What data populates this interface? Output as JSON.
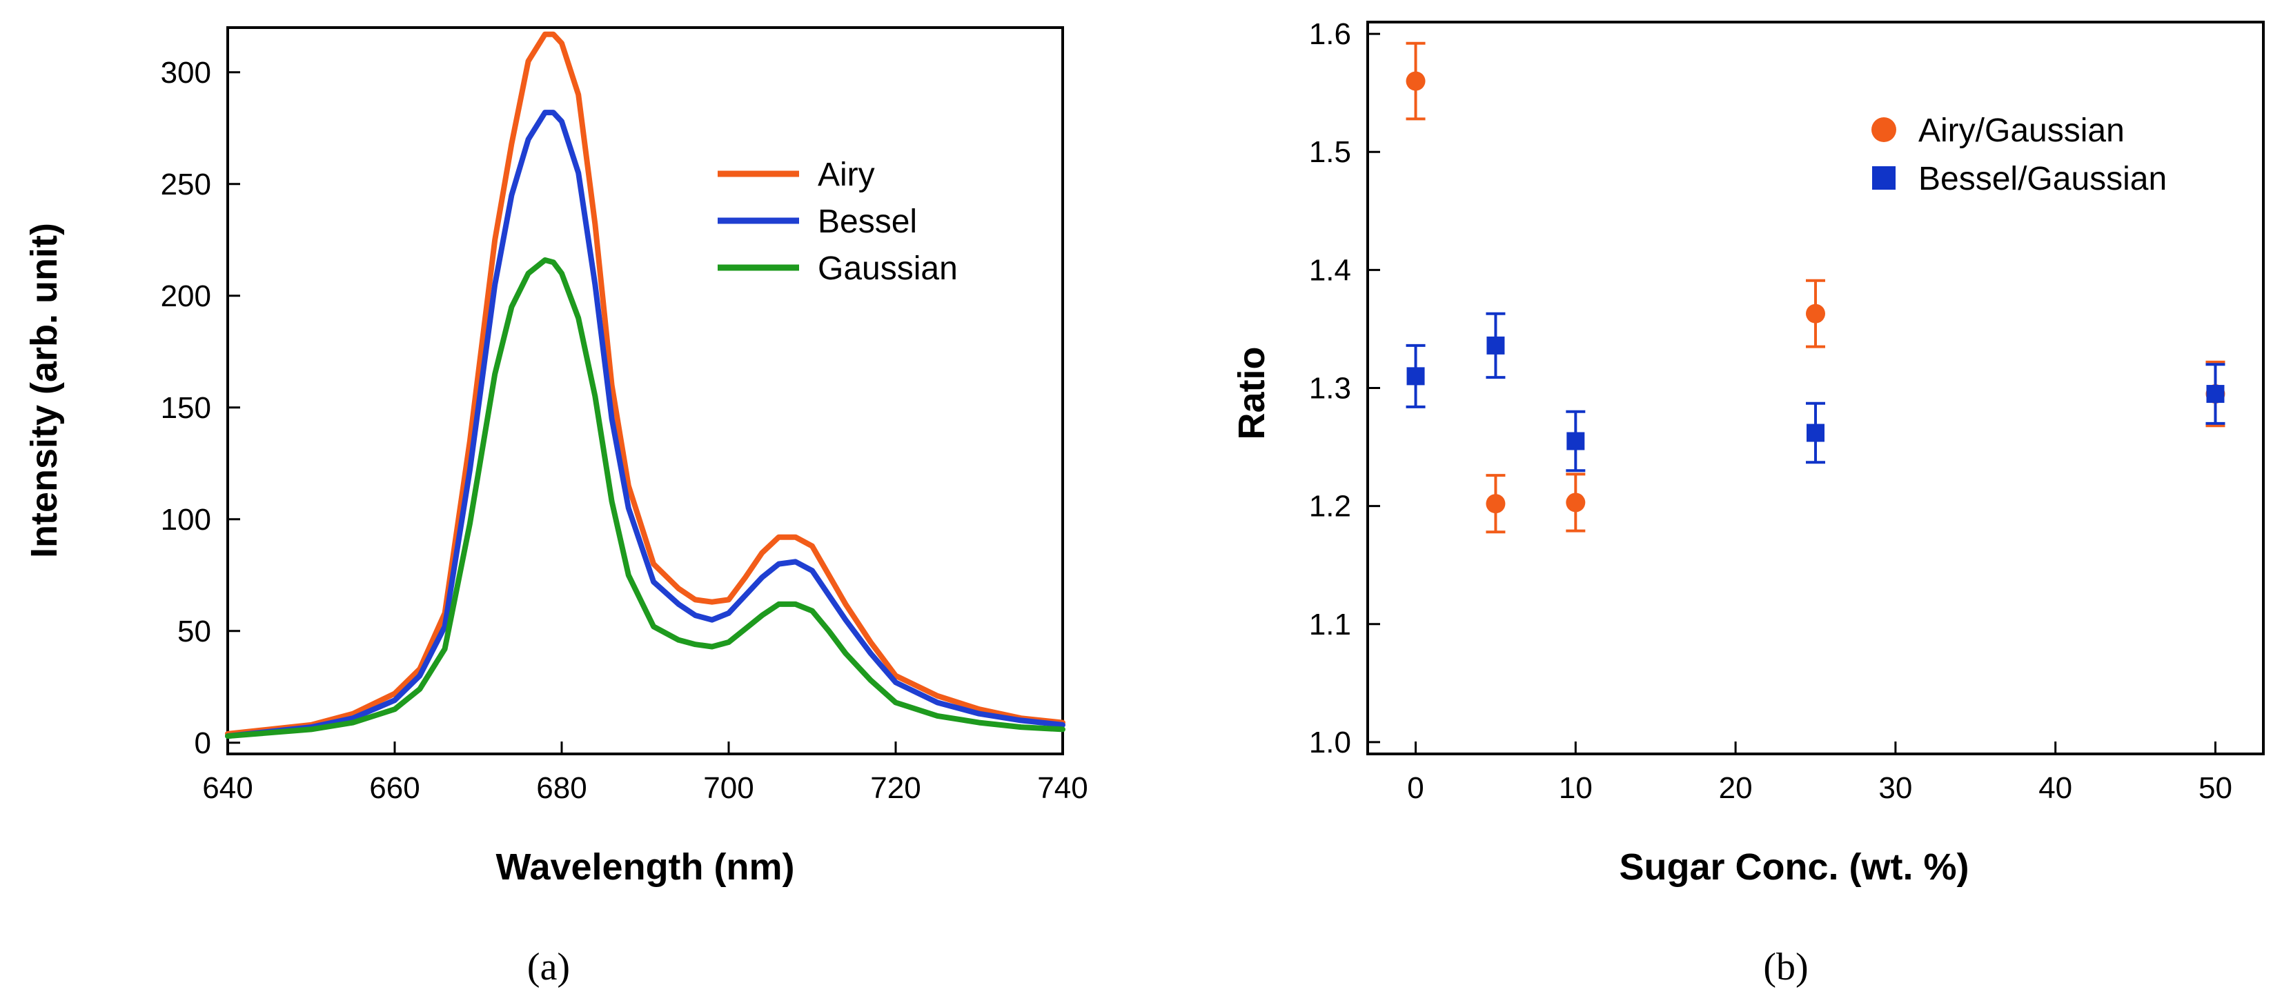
{
  "chart_data": [
    {
      "type": "line",
      "panel_caption": "(a)",
      "xlabel": "Wavelength (nm)",
      "ylabel": "Intensity (arb. unit)",
      "xlim": [
        640,
        740
      ],
      "ylim": [
        -5,
        320
      ],
      "xticks": [
        640,
        660,
        680,
        700,
        720,
        740
      ],
      "yticks": [
        0,
        50,
        100,
        150,
        200,
        250,
        300
      ],
      "legend_position": "top-right",
      "x": [
        640,
        650,
        655,
        660,
        663,
        666,
        669,
        672,
        674,
        676,
        678,
        679,
        680,
        682,
        684,
        686,
        688,
        691,
        694,
        696,
        698,
        700,
        702,
        704,
        706,
        708,
        710,
        712,
        714,
        717,
        720,
        725,
        730,
        735,
        740
      ],
      "series": [
        {
          "name": "Airy",
          "color": "#f25c19",
          "values": [
            4,
            8,
            13,
            22,
            33,
            58,
            135,
            225,
            268,
            305,
            317,
            317,
            313,
            290,
            232,
            160,
            115,
            80,
            69,
            64,
            63,
            64,
            74,
            85,
            92,
            92,
            88,
            75,
            62,
            45,
            30,
            21,
            15,
            11,
            9
          ]
        },
        {
          "name": "Bessel",
          "color": "#1f3fd1",
          "values": [
            3,
            7,
            11,
            19,
            30,
            52,
            122,
            205,
            245,
            270,
            282,
            282,
            278,
            255,
            205,
            145,
            105,
            72,
            62,
            57,
            55,
            58,
            66,
            74,
            80,
            81,
            77,
            66,
            55,
            40,
            27,
            18,
            13,
            10,
            8
          ]
        },
        {
          "name": "Gaussian",
          "color": "#1e9a1e",
          "values": [
            3,
            6,
            9,
            15,
            24,
            42,
            98,
            165,
            195,
            210,
            216,
            215,
            210,
            190,
            155,
            108,
            75,
            52,
            46,
            44,
            43,
            45,
            51,
            57,
            62,
            62,
            59,
            50,
            40,
            28,
            18,
            12,
            9,
            7,
            6
          ]
        }
      ]
    },
    {
      "type": "scatter",
      "panel_caption": "(b)",
      "xlabel": "Sugar Conc. (wt. %)",
      "ylabel": "Ratio",
      "xlim": [
        -3,
        53
      ],
      "ylim": [
        0.99,
        1.61
      ],
      "xticks": [
        0,
        10,
        20,
        30,
        40,
        50
      ],
      "yticks": [
        "1.0",
        "1.1",
        "1.2",
        "1.3",
        "1.4",
        "1.5",
        "1.6"
      ],
      "legend_position": "top-right",
      "series": [
        {
          "name": "Airy/Gaussian",
          "marker": "circle",
          "color": "#f25c19",
          "x": [
            0,
            5,
            10,
            25,
            50
          ],
          "y": [
            1.56,
            1.202,
            1.203,
            1.363,
            1.295
          ],
          "err": [
            0.032,
            0.024,
            0.024,
            0.028,
            0.027
          ]
        },
        {
          "name": "Bessel/Gaussian",
          "marker": "square",
          "color": "#1034c8",
          "x": [
            0,
            5,
            10,
            25,
            50
          ],
          "y": [
            1.31,
            1.336,
            1.255,
            1.262,
            1.295
          ],
          "err": [
            0.026,
            0.027,
            0.025,
            0.025,
            0.025
          ]
        }
      ]
    }
  ]
}
